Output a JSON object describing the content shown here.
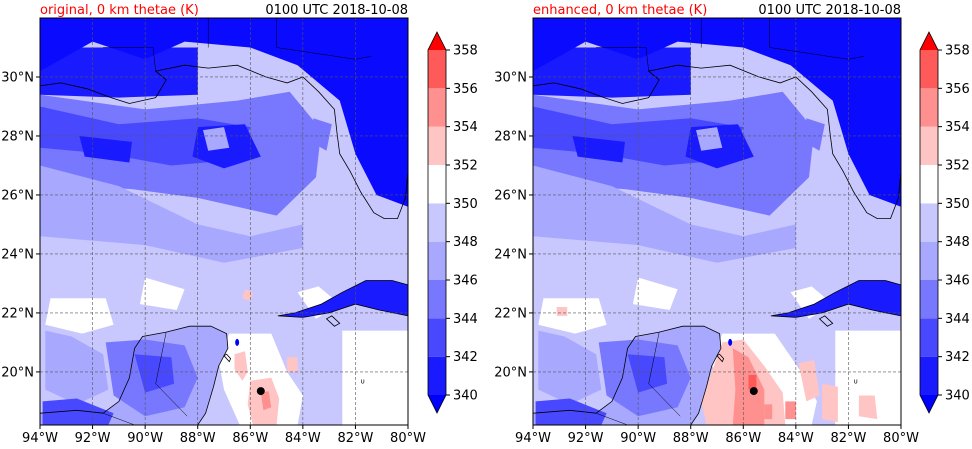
{
  "panels": [
    {
      "id": "original",
      "title_left": "original, 0 km thetae (K)",
      "title_right": "0100 UTC 2018-10-08",
      "variant": "original"
    },
    {
      "id": "enhanced",
      "title_left": "enhanced, 0 km thetae (K)",
      "title_right": "0100 UTC 2018-10-08",
      "variant": "enhanced"
    }
  ],
  "map": {
    "lon_range": [
      -94,
      -80
    ],
    "lat_range": [
      18.2,
      32
    ],
    "lon_ticks": [
      "94°W",
      "92°W",
      "90°W",
      "88°W",
      "86°W",
      "84°W",
      "82°W",
      "80°W"
    ],
    "lat_ticks": [
      "20°N",
      "22°N",
      "24°N",
      "26°N",
      "28°N",
      "30°N"
    ],
    "gridlines": true,
    "marker": {
      "lon": -85.6,
      "lat": 19.35,
      "color": "#000000"
    }
  },
  "colorbar": {
    "label_values": [
      "340",
      "342",
      "344",
      "346",
      "348",
      "350",
      "352",
      "354",
      "356",
      "358"
    ],
    "levels": [
      340,
      342,
      344,
      346,
      348,
      350,
      352,
      354,
      356,
      358
    ],
    "colors": [
      "#1a1aff",
      "#4848ff",
      "#7878ff",
      "#a8a8ff",
      "#c8c8ff",
      "#ffffff",
      "#ffc4c4",
      "#ff9090",
      "#ff5a5a",
      "#ff1f1f"
    ],
    "under_color": "#0000ff",
    "over_color": "#ff0000"
  }
}
